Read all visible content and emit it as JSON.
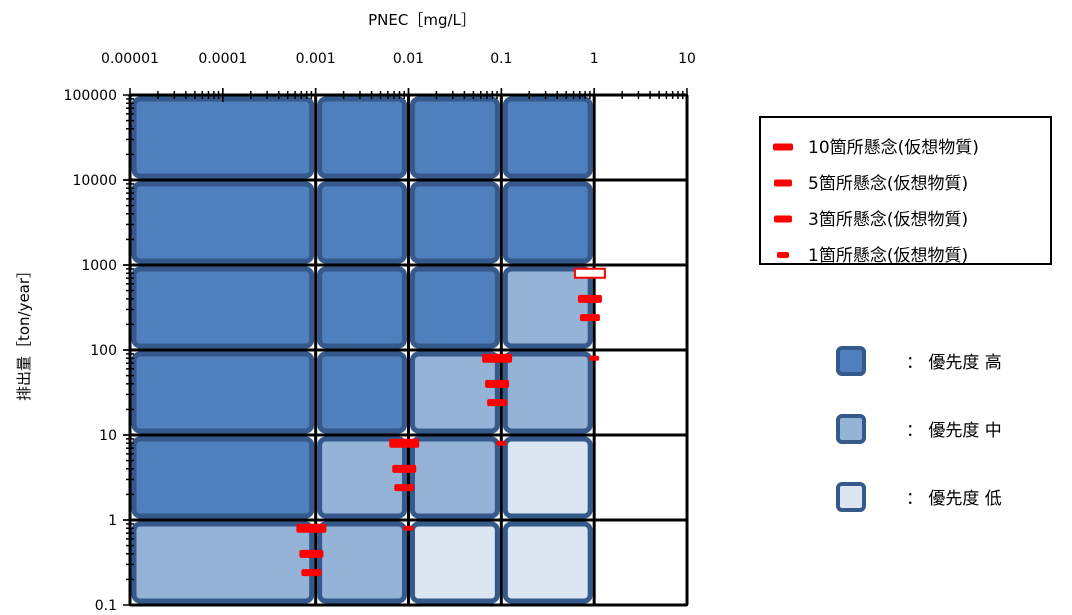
{
  "chart_data": {
    "type": "heatmap",
    "title": "",
    "xlabel": "PNEC［mg/L］",
    "ylabel": "排出量［ton/year］",
    "x_scale": "log",
    "y_scale": "log",
    "xlim": [
      1e-05,
      10
    ],
    "ylim": [
      0.1,
      100000
    ],
    "x_tick_labels": [
      "0.00001",
      "0.0001",
      "0.001",
      "0.01",
      "0.1",
      "1",
      "10"
    ],
    "y_tick_labels": [
      "100000",
      "10000",
      "1000",
      "100",
      "10",
      "1",
      "0.1"
    ],
    "x_cell_edges": [
      1e-05,
      0.001,
      0.01,
      0.1,
      1,
      10
    ],
    "y_cell_edges": [
      0.1,
      1,
      10,
      100,
      1000,
      10000,
      100000
    ],
    "priority_levels": [
      "高",
      "中",
      "低",
      "none"
    ],
    "priority_colors": {
      "高": "#4f7fbc",
      "中": "#95b3d7",
      "低": "#dce6f2",
      "none": "#ffffff"
    },
    "cells": [
      [
        "高",
        "高",
        "高",
        "高",
        "none"
      ],
      [
        "高",
        "高",
        "高",
        "高",
        "none"
      ],
      [
        "高",
        "高",
        "高",
        "中",
        "none"
      ],
      [
        "高",
        "高",
        "中",
        "中",
        "none"
      ],
      [
        "高",
        "中",
        "中",
        "低",
        "none"
      ],
      [
        "中",
        "中",
        "低",
        "低",
        "none"
      ]
    ],
    "series": [
      {
        "name": "10箇所懸念(仮想物質)",
        "style": "hollow",
        "points": [
          {
            "x": 0.9,
            "y": 800
          },
          {
            "x": 0.09,
            "y": 80
          },
          {
            "x": 0.009,
            "y": 8
          },
          {
            "x": 0.0009,
            "y": 0.8
          }
        ]
      },
      {
        "name": "5箇所懸念(仮想物質)",
        "points": [
          {
            "x": 0.9,
            "y": 400
          },
          {
            "x": 0.09,
            "y": 40
          },
          {
            "x": 0.009,
            "y": 4
          },
          {
            "x": 0.0009,
            "y": 0.4
          }
        ]
      },
      {
        "name": "3箇所懸念(仮想物質)",
        "points": [
          {
            "x": 0.9,
            "y": 240
          },
          {
            "x": 0.09,
            "y": 24
          },
          {
            "x": 0.009,
            "y": 2.4
          },
          {
            "x": 0.0009,
            "y": 0.24
          }
        ]
      },
      {
        "name": "1箇所懸念(仮想物質)",
        "points": [
          {
            "x": 1,
            "y": 80
          },
          {
            "x": 0.1,
            "y": 8
          },
          {
            "x": 0.01,
            "y": 0.8
          }
        ]
      }
    ],
    "series_color": "#ff0000",
    "legend_position": "right",
    "priority_legend": [
      {
        "level": "高",
        "text": "：  優先度  高"
      },
      {
        "level": "中",
        "text": "：  優先度  中"
      },
      {
        "level": "低",
        "text": "：  優先度  低"
      }
    ],
    "grid": true
  }
}
